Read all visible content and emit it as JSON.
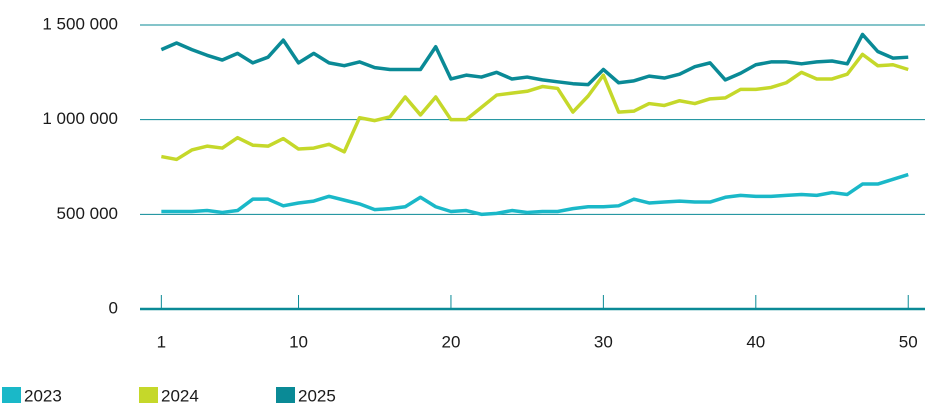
{
  "chart_data": {
    "type": "line",
    "x": [
      1,
      2,
      3,
      4,
      5,
      6,
      7,
      8,
      9,
      10,
      11,
      12,
      13,
      14,
      15,
      16,
      17,
      18,
      19,
      20,
      21,
      22,
      23,
      24,
      25,
      26,
      27,
      28,
      29,
      30,
      31,
      32,
      33,
      34,
      35,
      36,
      37,
      38,
      39,
      40,
      41,
      42,
      43,
      44,
      45,
      46,
      47,
      48,
      49,
      50
    ],
    "series": [
      {
        "name": "2023",
        "color": "#1ab8c8",
        "values": [
          515000,
          515000,
          515000,
          520000,
          510000,
          520000,
          580000,
          580000,
          545000,
          560000,
          570000,
          595000,
          575000,
          555000,
          525000,
          530000,
          540000,
          590000,
          540000,
          515000,
          520000,
          500000,
          505000,
          520000,
          510000,
          515000,
          515000,
          530000,
          540000,
          540000,
          545000,
          580000,
          560000,
          565000,
          570000,
          565000,
          565000,
          590000,
          600000,
          595000,
          595000,
          600000,
          605000,
          600000,
          615000,
          605000,
          660000,
          660000,
          685000,
          710000
        ]
      },
      {
        "name": "2024",
        "color": "#c5d82a",
        "values": [
          805000,
          790000,
          840000,
          860000,
          850000,
          905000,
          865000,
          860000,
          900000,
          845000,
          850000,
          870000,
          830000,
          1010000,
          995000,
          1015000,
          1120000,
          1025000,
          1120000,
          1000000,
          1000000,
          1065000,
          1130000,
          1140000,
          1150000,
          1175000,
          1165000,
          1040000,
          1125000,
          1235000,
          1040000,
          1045000,
          1085000,
          1075000,
          1100000,
          1085000,
          1110000,
          1115000,
          1160000,
          1160000,
          1170000,
          1195000,
          1250000,
          1215000,
          1215000,
          1240000,
          1345000,
          1285000,
          1290000,
          1265000
        ]
      },
      {
        "name": "2025",
        "color": "#0a8a96",
        "values": [
          1370000,
          1405000,
          1370000,
          1340000,
          1315000,
          1350000,
          1300000,
          1330000,
          1420000,
          1300000,
          1350000,
          1300000,
          1285000,
          1305000,
          1275000,
          1265000,
          1265000,
          1265000,
          1385000,
          1215000,
          1235000,
          1225000,
          1250000,
          1215000,
          1225000,
          1210000,
          1200000,
          1190000,
          1185000,
          1265000,
          1195000,
          1205000,
          1230000,
          1220000,
          1240000,
          1280000,
          1300000,
          1210000,
          1245000,
          1290000,
          1305000,
          1305000,
          1295000,
          1305000,
          1310000,
          1295000,
          1450000,
          1360000,
          1325000,
          1330000
        ]
      }
    ],
    "xlim": [
      -0.4,
      51.1
    ],
    "xticks": [
      1,
      10,
      20,
      30,
      40,
      50
    ],
    "ylim": [
      0,
      1500000
    ],
    "yticks": [
      0,
      {
        "value": 500000,
        "label": "500 000"
      },
      {
        "value": 1000000,
        "label": "1 000 000"
      },
      {
        "value": 1500000,
        "label": "1 500 000"
      }
    ],
    "grid": true,
    "legend": "bottom-left"
  }
}
